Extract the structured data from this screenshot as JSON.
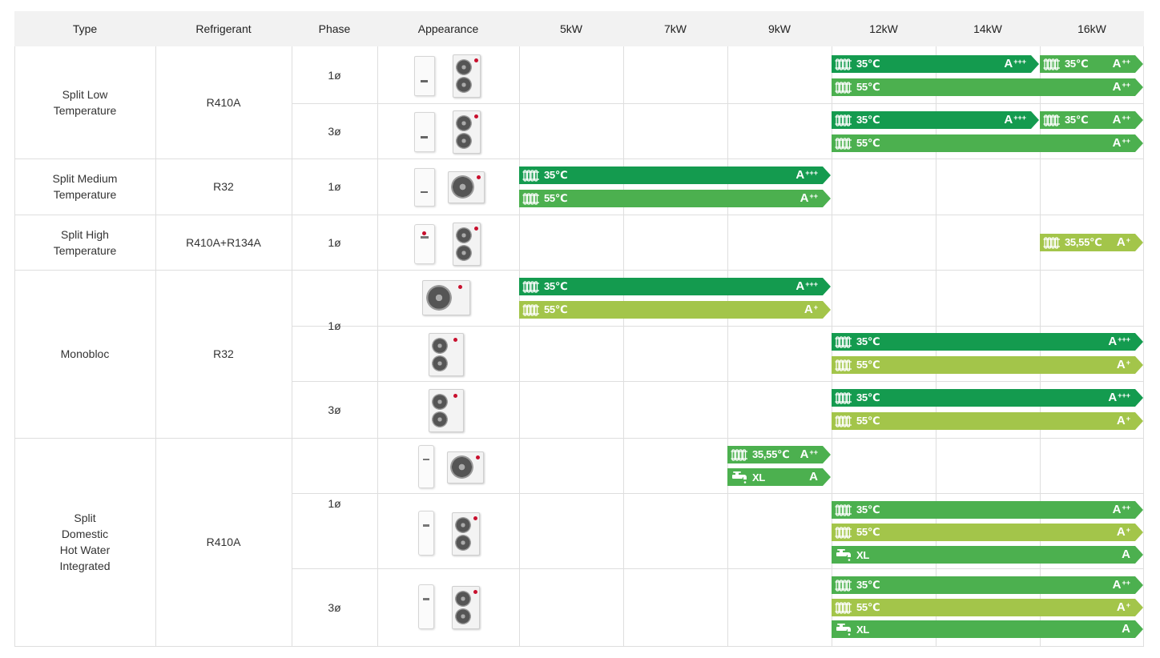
{
  "headers": [
    "Type",
    "Refrigerant",
    "Phase",
    "Appearance",
    "5kW",
    "7kW",
    "9kW",
    "12kW",
    "14kW",
    "16kW"
  ],
  "types": [
    "Split Low\nTemperature",
    "Split Medium\nTemperature",
    "Split High\nTemperature",
    "Monobloc",
    "Split\nDomestic\nHot Water\nIntegrated"
  ],
  "refrigerants": [
    "R410A",
    "R32",
    "R410A+R134A",
    "R32",
    "R410A"
  ],
  "phases": [
    "1ø",
    "3ø",
    "1ø",
    "1ø",
    "1ø",
    "3ø",
    "1ø",
    "3ø"
  ],
  "appearance_icons": [
    "indoor-outdoor-vertical-unit",
    "indoor-outdoor-vertical-unit",
    "indoor-outdoor-horizontal-unit",
    "tank-outdoor-vertical-unit",
    "monobloc-horizontal-unit",
    "monobloc-vertical-unit",
    "monobloc-vertical-unit",
    "tank-outdoor-horizontal-unit",
    "tank-outdoor-vertical-unit",
    "tank-outdoor-vertical-unit"
  ],
  "colors": {
    "dark_green": "#149b4f",
    "medium_green": "#4cb04f",
    "light_green": "#a3c54a",
    "header_bg": "#f2f2f2",
    "grid_line": "#dedede"
  },
  "ratings": [
    {
      "row": 0,
      "col_from": 3,
      "col_to": 4,
      "line": 0,
      "icon": "radiator-icon",
      "label": "35℃",
      "grade": "A",
      "plus": "+++",
      "color": "#149b4f"
    },
    {
      "row": 0,
      "col_from": 5,
      "col_to": 5,
      "line": 0,
      "icon": "radiator-icon",
      "label": "35℃",
      "grade": "A",
      "plus": "++",
      "color": "#4cb04f"
    },
    {
      "row": 0,
      "col_from": 3,
      "col_to": 5,
      "line": 1,
      "icon": "radiator-icon",
      "label": "55℃",
      "grade": "A",
      "plus": "++",
      "color": "#4cb04f"
    },
    {
      "row": 1,
      "col_from": 3,
      "col_to": 4,
      "line": 0,
      "icon": "radiator-icon",
      "label": "35℃",
      "grade": "A",
      "plus": "+++",
      "color": "#149b4f"
    },
    {
      "row": 1,
      "col_from": 5,
      "col_to": 5,
      "line": 0,
      "icon": "radiator-icon",
      "label": "35℃",
      "grade": "A",
      "plus": "++",
      "color": "#4cb04f"
    },
    {
      "row": 1,
      "col_from": 3,
      "col_to": 5,
      "line": 1,
      "icon": "radiator-icon",
      "label": "55℃",
      "grade": "A",
      "plus": "++",
      "color": "#4cb04f"
    },
    {
      "row": 2,
      "col_from": 0,
      "col_to": 2,
      "line": 0,
      "icon": "radiator-icon",
      "label": "35℃",
      "grade": "A",
      "plus": "+++",
      "color": "#149b4f"
    },
    {
      "row": 2,
      "col_from": 0,
      "col_to": 2,
      "line": 1,
      "icon": "radiator-icon",
      "label": "55℃",
      "grade": "A",
      "plus": "++",
      "color": "#4cb04f"
    },
    {
      "row": 3,
      "col_from": 5,
      "col_to": 5,
      "line": 0,
      "icon": "radiator-icon",
      "label": "35,55℃",
      "grade": "A",
      "plus": "+",
      "color": "#a3c54a"
    },
    {
      "row": 4,
      "col_from": 0,
      "col_to": 2,
      "line": 0,
      "icon": "radiator-icon",
      "label": "35℃",
      "grade": "A",
      "plus": "+++",
      "color": "#149b4f"
    },
    {
      "row": 4,
      "col_from": 0,
      "col_to": 2,
      "line": 1,
      "icon": "radiator-icon",
      "label": "55℃",
      "grade": "A",
      "plus": "+",
      "color": "#a3c54a"
    },
    {
      "row": 5,
      "col_from": 3,
      "col_to": 5,
      "line": 0,
      "icon": "radiator-icon",
      "label": "35℃",
      "grade": "A",
      "plus": "+++",
      "color": "#149b4f"
    },
    {
      "row": 5,
      "col_from": 3,
      "col_to": 5,
      "line": 1,
      "icon": "radiator-icon",
      "label": "55℃",
      "grade": "A",
      "plus": "+",
      "color": "#a3c54a"
    },
    {
      "row": 6,
      "col_from": 3,
      "col_to": 5,
      "line": 0,
      "icon": "radiator-icon",
      "label": "35℃",
      "grade": "A",
      "plus": "+++",
      "color": "#149b4f"
    },
    {
      "row": 6,
      "col_from": 3,
      "col_to": 5,
      "line": 1,
      "icon": "radiator-icon",
      "label": "55℃",
      "grade": "A",
      "plus": "+",
      "color": "#a3c54a"
    },
    {
      "row": 7,
      "col_from": 2,
      "col_to": 2,
      "line": 0,
      "icon": "radiator-icon",
      "label": "35,55℃",
      "grade": "A",
      "plus": "++",
      "color": "#4cb04f"
    },
    {
      "row": 7,
      "col_from": 2,
      "col_to": 2,
      "line": 1,
      "icon": "faucet-icon",
      "label": "XL",
      "grade": "A",
      "plus": "",
      "color": "#4cb04f"
    },
    {
      "row": 8,
      "col_from": 3,
      "col_to": 5,
      "line": 0,
      "icon": "radiator-icon",
      "label": "35℃",
      "grade": "A",
      "plus": "++",
      "color": "#4cb04f"
    },
    {
      "row": 8,
      "col_from": 3,
      "col_to": 5,
      "line": 1,
      "icon": "radiator-icon",
      "label": "55℃",
      "grade": "A",
      "plus": "+",
      "color": "#a3c54a"
    },
    {
      "row": 8,
      "col_from": 3,
      "col_to": 5,
      "line": 2,
      "icon": "faucet-icon",
      "label": "XL",
      "grade": "A",
      "plus": "",
      "color": "#4cb04f"
    },
    {
      "row": 9,
      "col_from": 3,
      "col_to": 5,
      "line": 0,
      "icon": "radiator-icon",
      "label": "35℃",
      "grade": "A",
      "plus": "++",
      "color": "#4cb04f"
    },
    {
      "row": 9,
      "col_from": 3,
      "col_to": 5,
      "line": 1,
      "icon": "radiator-icon",
      "label": "55℃",
      "grade": "A",
      "plus": "+",
      "color": "#a3c54a"
    },
    {
      "row": 9,
      "col_from": 3,
      "col_to": 5,
      "line": 2,
      "icon": "faucet-icon",
      "label": "XL",
      "grade": "A",
      "plus": "",
      "color": "#4cb04f"
    }
  ]
}
